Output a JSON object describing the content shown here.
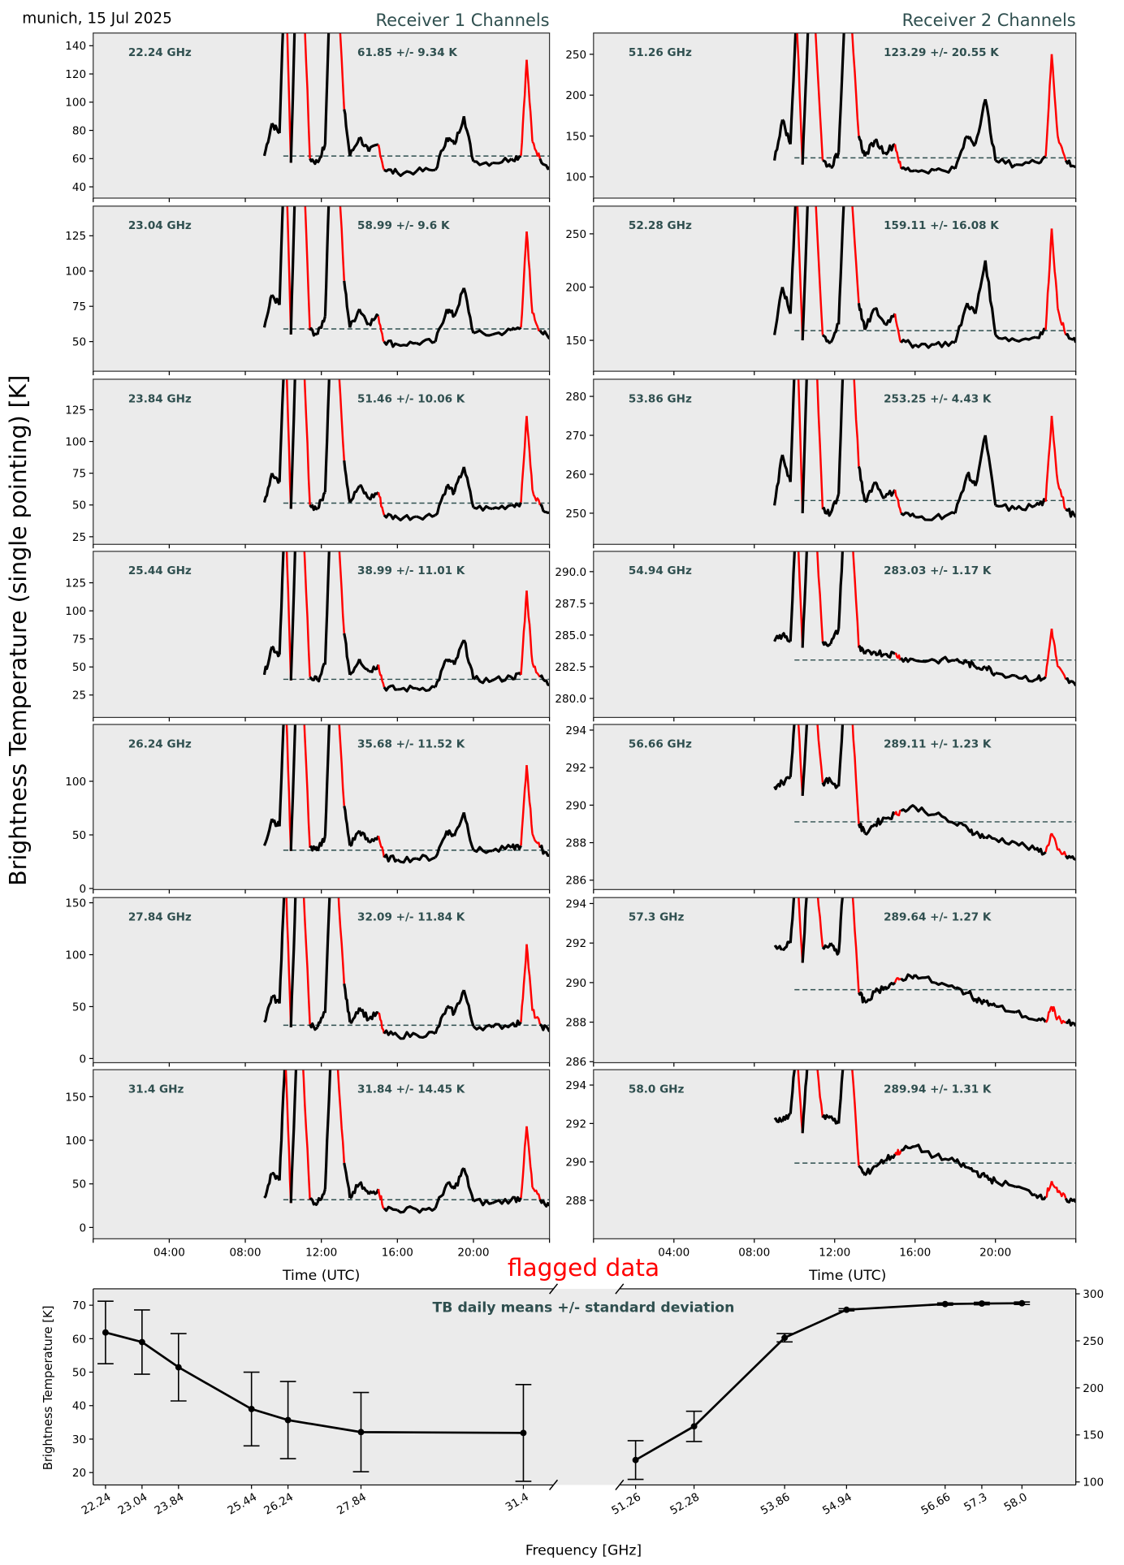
{
  "header": {
    "location_date": "munich, 15 Jul 2025",
    "receiver1_title": "Receiver 1 Channels",
    "receiver2_title": "Receiver 2 Channels"
  },
  "ylabel": "Brightness Temperature (single pointing) [K]",
  "flagged_label": "flagged data",
  "colors": {
    "valid": "#000000",
    "flagged": "#ff0000",
    "mean_line": "#2f4f4f",
    "panel_bg": "#ebebeb",
    "label_text": "#2f4f4f"
  },
  "chart_data": [
    {
      "type": "line",
      "title": "Receiver 1 Channels",
      "xlabel": "Time (UTC)",
      "xticks": [
        "04:00",
        "08:00",
        "12:00",
        "16:00",
        "20:00"
      ],
      "xlim_hours": [
        0,
        24
      ],
      "time_hours": [
        9.0,
        9.4,
        9.8,
        10.1,
        10.4,
        10.7,
        11.0,
        11.4,
        11.8,
        12.2,
        12.5,
        12.8,
        13.2,
        13.5,
        14.0,
        14.5,
        15.0,
        15.3,
        16.0,
        17.0,
        18.0,
        18.6,
        19.0,
        19.5,
        20.0,
        21.0,
        22.0,
        22.5,
        22.8,
        23.1,
        23.5,
        24.0
      ],
      "flagged_hours": [
        [
          10.0,
          10.5
        ],
        [
          10.6,
          11.3
        ],
        [
          12.4,
          13.2
        ],
        [
          15.1,
          15.35
        ],
        [
          22.6,
          23.0
        ],
        [
          23.2,
          23.6
        ]
      ],
      "channels": [
        {
          "freq_label": "22.24 GHz",
          "stat_label": "61.85 +/- 9.34 K",
          "mean": 61.85,
          "ylim": [
            32,
            149
          ],
          "yticks": [
            "40",
            "60",
            "80",
            "100",
            "120",
            "140"
          ],
          "values": [
            62,
            85,
            78,
            200,
            57,
            200,
            200,
            60,
            57,
            70,
            200,
            200,
            95,
            62,
            75,
            65,
            70,
            52,
            50,
            51,
            52,
            75,
            70,
            90,
            58,
            57,
            60,
            62,
            130,
            72,
            60,
            54
          ]
        },
        {
          "freq_label": "23.04 GHz",
          "stat_label": "58.99 +/- 9.6 K",
          "mean": 58.99,
          "ylim": [
            29,
            146
          ],
          "yticks": [
            "50",
            "75",
            "100",
            "125"
          ],
          "values": [
            60,
            83,
            76,
            198,
            55,
            198,
            198,
            58,
            55,
            68,
            198,
            198,
            93,
            60,
            73,
            63,
            68,
            50,
            48,
            49,
            50,
            73,
            68,
            88,
            56,
            55,
            58,
            60,
            128,
            70,
            58,
            52
          ]
        },
        {
          "freq_label": "23.84 GHz",
          "stat_label": "51.46 +/- 10.06 K",
          "mean": 51.46,
          "ylim": [
            19,
            149
          ],
          "yticks": [
            "25",
            "50",
            "75",
            "100",
            "125"
          ],
          "values": [
            52,
            75,
            68,
            190,
            47,
            190,
            190,
            50,
            47,
            60,
            190,
            190,
            85,
            52,
            65,
            55,
            60,
            42,
            40,
            41,
            42,
            65,
            60,
            80,
            48,
            47,
            50,
            52,
            120,
            62,
            50,
            44
          ]
        },
        {
          "freq_label": "25.44 GHz",
          "stat_label": "38.99 +/- 11.01 K",
          "mean": 38.99,
          "ylim": [
            5,
            153
          ],
          "yticks": [
            "25",
            "50",
            "75",
            "100",
            "125"
          ],
          "values": [
            43,
            68,
            61,
            195,
            38,
            195,
            195,
            41,
            38,
            52,
            195,
            195,
            80,
            43,
            57,
            46,
            52,
            32,
            30,
            31,
            32,
            57,
            52,
            74,
            39,
            38,
            41,
            43,
            118,
            54,
            41,
            34
          ]
        },
        {
          "freq_label": "26.24 GHz",
          "stat_label": "35.68 +/- 11.52 K",
          "mean": 35.68,
          "ylim": [
            -1,
            153
          ],
          "yticks": [
            "0",
            "50",
            "100"
          ],
          "values": [
            40,
            65,
            58,
            192,
            35,
            192,
            192,
            38,
            35,
            49,
            192,
            192,
            77,
            40,
            54,
            43,
            49,
            29,
            27,
            28,
            29,
            54,
            49,
            71,
            36,
            35,
            38,
            40,
            115,
            51,
            38,
            31
          ]
        },
        {
          "freq_label": "27.84 GHz",
          "stat_label": "32.09 +/- 11.84 K",
          "mean": 32.09,
          "ylim": [
            -4,
            155
          ],
          "yticks": [
            "0",
            "50",
            "100",
            "150"
          ],
          "values": [
            35,
            60,
            53,
            187,
            30,
            187,
            187,
            33,
            30,
            44,
            187,
            187,
            72,
            35,
            49,
            38,
            44,
            24,
            22,
            23,
            24,
            49,
            44,
            66,
            31,
            30,
            33,
            35,
            110,
            46,
            33,
            26
          ]
        },
        {
          "freq_label": "31.4 GHz",
          "stat_label": "31.84 +/- 14.45 K",
          "mean": 31.84,
          "ylim": [
            -13,
            181
          ],
          "yticks": [
            "0",
            "50",
            "100",
            "150"
          ],
          "values": [
            34,
            62,
            54,
            200,
            28,
            200,
            200,
            32,
            28,
            44,
            200,
            200,
            74,
            34,
            50,
            38,
            44,
            22,
            20,
            21,
            22,
            50,
            44,
            68,
            30,
            28,
            32,
            34,
            116,
            46,
            32,
            25
          ]
        }
      ]
    },
    {
      "type": "line",
      "title": "Receiver 2 Channels",
      "xlabel": "Time (UTC)",
      "xticks": [
        "04:00",
        "08:00",
        "12:00",
        "16:00",
        "20:00"
      ],
      "xlim_hours": [
        0,
        24
      ],
      "time_hours": [
        9.0,
        9.4,
        9.8,
        10.1,
        10.4,
        10.7,
        11.0,
        11.4,
        11.8,
        12.2,
        12.5,
        12.8,
        13.2,
        13.5,
        14.0,
        14.5,
        15.0,
        15.3,
        16.0,
        17.0,
        18.0,
        18.6,
        19.0,
        19.5,
        20.0,
        21.0,
        22.0,
        22.5,
        22.8,
        23.1,
        23.5,
        24.0
      ],
      "flagged_hours": [
        [
          10.0,
          10.5
        ],
        [
          10.6,
          11.3
        ],
        [
          12.4,
          13.2
        ],
        [
          15.1,
          15.35
        ],
        [
          22.6,
          23.0
        ],
        [
          23.2,
          23.6
        ]
      ],
      "channels": [
        {
          "freq_label": "51.26 GHz",
          "stat_label": "123.29 +/- 20.55 K",
          "mean": 123.29,
          "ylim": [
            74,
            276
          ],
          "yticks": [
            "100",
            "150",
            "200",
            "250"
          ],
          "values": [
            120,
            170,
            140,
            300,
            115,
            300,
            300,
            120,
            112,
            130,
            300,
            300,
            150,
            125,
            145,
            130,
            140,
            110,
            108,
            108,
            110,
            150,
            140,
            195,
            120,
            115,
            118,
            125,
            250,
            150,
            120,
            112
          ]
        },
        {
          "freq_label": "52.28 GHz",
          "stat_label": "159.11 +/- 16.08 K",
          "mean": 159.11,
          "ylim": [
            121,
            276
          ],
          "yticks": [
            "150",
            "200",
            "250"
          ],
          "values": [
            155,
            200,
            175,
            300,
            150,
            300,
            300,
            155,
            148,
            165,
            300,
            300,
            185,
            160,
            180,
            165,
            175,
            148,
            146,
            146,
            148,
            185,
            175,
            225,
            155,
            150,
            153,
            160,
            255,
            180,
            155,
            148
          ]
        },
        {
          "freq_label": "53.86 GHz",
          "stat_label": "253.25 +/- 4.43 K",
          "mean": 253.25,
          "ylim": [
            242,
            284.4
          ],
          "yticks": [
            "250",
            "260",
            "270",
            "280"
          ],
          "values": [
            252,
            265,
            258,
            300,
            250,
            300,
            300,
            251,
            250,
            255,
            300,
            300,
            262,
            253,
            258,
            254,
            256,
            250,
            249,
            249,
            250,
            260,
            257,
            270,
            252,
            251,
            252,
            253,
            275,
            258,
            251,
            249
          ]
        },
        {
          "freq_label": "54.94 GHz",
          "stat_label": "283.03 +/- 1.17 K",
          "mean": 283.03,
          "ylim": [
            278.5,
            291.6
          ],
          "yticks": [
            "280.0",
            "282.5",
            "285.0",
            "287.5",
            "290.0"
          ],
          "values": [
            284.5,
            285,
            284.5,
            295,
            284,
            295,
            295,
            284.5,
            284.3,
            285.5,
            295,
            295,
            284,
            283.5,
            283.7,
            283.5,
            283.5,
            283.2,
            283.0,
            283.0,
            283.0,
            282.8,
            282.5,
            282.5,
            282.0,
            281.8,
            281.5,
            281.7,
            285.5,
            282.5,
            281.5,
            281.0
          ]
        },
        {
          "freq_label": "56.66 GHz",
          "stat_label": "289.11 +/- 1.23 K",
          "mean": 289.11,
          "ylim": [
            285.5,
            294.3
          ],
          "yticks": [
            "286",
            "288",
            "290",
            "292",
            "294"
          ],
          "values": [
            291,
            291.2,
            291.5,
            296,
            290.5,
            296,
            296,
            291.2,
            291.3,
            291,
            296,
            296,
            289,
            288.5,
            289,
            289.3,
            289.5,
            289.7,
            289.9,
            289.5,
            289.0,
            288.8,
            288.5,
            288.3,
            288.2,
            288.0,
            287.6,
            287.5,
            288.5,
            287.6,
            287.3,
            287.1
          ]
        },
        {
          "freq_label": "57.3 GHz",
          "stat_label": "289.64 +/- 1.27 K",
          "mean": 289.64,
          "ylim": [
            285.95,
            294.3
          ],
          "yticks": [
            "286",
            "288",
            "290",
            "292",
            "294"
          ],
          "values": [
            291.8,
            291.7,
            292,
            296,
            291,
            296,
            296,
            291.8,
            292,
            291.5,
            296,
            296,
            289.5,
            289,
            289.5,
            289.8,
            290,
            290.2,
            290.4,
            290,
            289.7,
            289.5,
            289.2,
            289,
            288.8,
            288.5,
            288.1,
            288,
            288.8,
            288.2,
            288,
            287.8
          ]
        },
        {
          "freq_label": "58.0 GHz",
          "stat_label": "289.94 +/- 1.31 K",
          "mean": 289.94,
          "ylim": [
            286,
            294.8
          ],
          "yticks": [
            "288",
            "290",
            "292",
            "294"
          ],
          "values": [
            292.2,
            292.1,
            292.5,
            296,
            291.5,
            296,
            296,
            292.3,
            292.4,
            292,
            296,
            296,
            289.8,
            289.3,
            289.8,
            290.1,
            290.4,
            290.6,
            290.8,
            290.3,
            290,
            289.7,
            289.5,
            289.2,
            289,
            288.7,
            288.3,
            288.2,
            289,
            288.4,
            288.1,
            287.9
          ]
        }
      ]
    },
    {
      "type": "line",
      "title": "TB daily means +/- standard deviation",
      "xlabel": "Frequency [GHz]",
      "ylabel": "Brightness Temperature [K]",
      "left": {
        "xlim": [
          21.97,
          32.06
        ],
        "ylim": [
          16.3,
          74.9
        ],
        "yticks": [
          "20",
          "30",
          "40",
          "50",
          "60",
          "70"
        ],
        "freqs": [
          22.24,
          23.04,
          23.84,
          25.44,
          26.24,
          27.84,
          31.4
        ],
        "xtick_labels": [
          "22.24",
          "23.04",
          "23.84",
          "25.44",
          "26.24",
          "27.84",
          "31.4"
        ],
        "means": [
          61.85,
          58.99,
          51.46,
          38.99,
          35.68,
          32.09,
          31.84
        ],
        "std": [
          9.34,
          9.6,
          10.06,
          11.01,
          11.52,
          11.84,
          14.45
        ]
      },
      "right": {
        "xlim": [
          50.98,
          58.94
        ],
        "ylim": [
          96.8,
          305.3
        ],
        "yticks": [
          "100",
          "150",
          "200",
          "250",
          "300"
        ],
        "freqs": [
          51.26,
          52.28,
          53.86,
          54.94,
          56.66,
          57.3,
          58.0
        ],
        "xtick_labels": [
          "51.26",
          "52.28",
          "53.86",
          "54.94",
          "56.66",
          "57.3",
          "58.0"
        ],
        "means": [
          123.29,
          159.11,
          253.25,
          283.03,
          289.11,
          289.64,
          289.94
        ],
        "std": [
          20.55,
          16.08,
          4.43,
          1.17,
          1.23,
          1.27,
          1.31
        ]
      }
    }
  ]
}
